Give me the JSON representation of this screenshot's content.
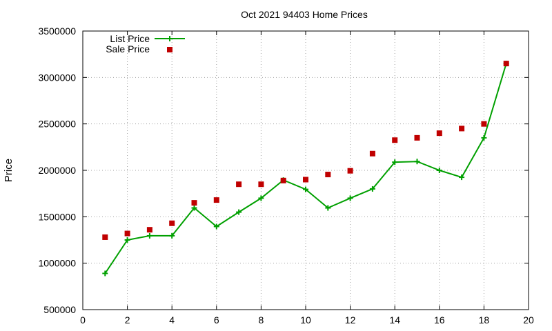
{
  "chart_data": {
    "type": "line",
    "title": "Oct 2021 94403 Home Prices",
    "xlabel": "",
    "ylabel": "Price",
    "xlim": [
      0,
      20
    ],
    "ylim": [
      500000,
      3500000
    ],
    "xticks": [
      0,
      2,
      4,
      6,
      8,
      10,
      12,
      14,
      16,
      18,
      20
    ],
    "yticks": [
      500000,
      1000000,
      1500000,
      2000000,
      2500000,
      3000000,
      3500000
    ],
    "grid": true,
    "legend_position": "top-left",
    "series": [
      {
        "name": "List Price",
        "style": "line-with-plus-markers",
        "color": "#00a000",
        "x": [
          1,
          2,
          3,
          4,
          5,
          6,
          7,
          8,
          9,
          10,
          11,
          12,
          13,
          14,
          15,
          16,
          17,
          18,
          19
        ],
        "values": [
          890000,
          1250000,
          1295000,
          1295000,
          1595000,
          1395000,
          1550000,
          1700000,
          1895000,
          1795000,
          1595000,
          1700000,
          1800000,
          2088000,
          2095000,
          2000000,
          1925000,
          2350000,
          3150000
        ]
      },
      {
        "name": "Sale Price",
        "style": "square-markers",
        "color": "#c00000",
        "x": [
          1,
          2,
          3,
          4,
          5,
          6,
          7,
          8,
          9,
          10,
          11,
          12,
          13,
          14,
          15,
          16,
          17,
          18,
          19
        ],
        "values": [
          1280000,
          1320000,
          1360000,
          1430000,
          1650000,
          1680000,
          1850000,
          1850000,
          1890000,
          1900000,
          1955000,
          1995000,
          2180000,
          2325000,
          2350000,
          2400000,
          2450000,
          2500000,
          3150000
        ]
      }
    ]
  }
}
